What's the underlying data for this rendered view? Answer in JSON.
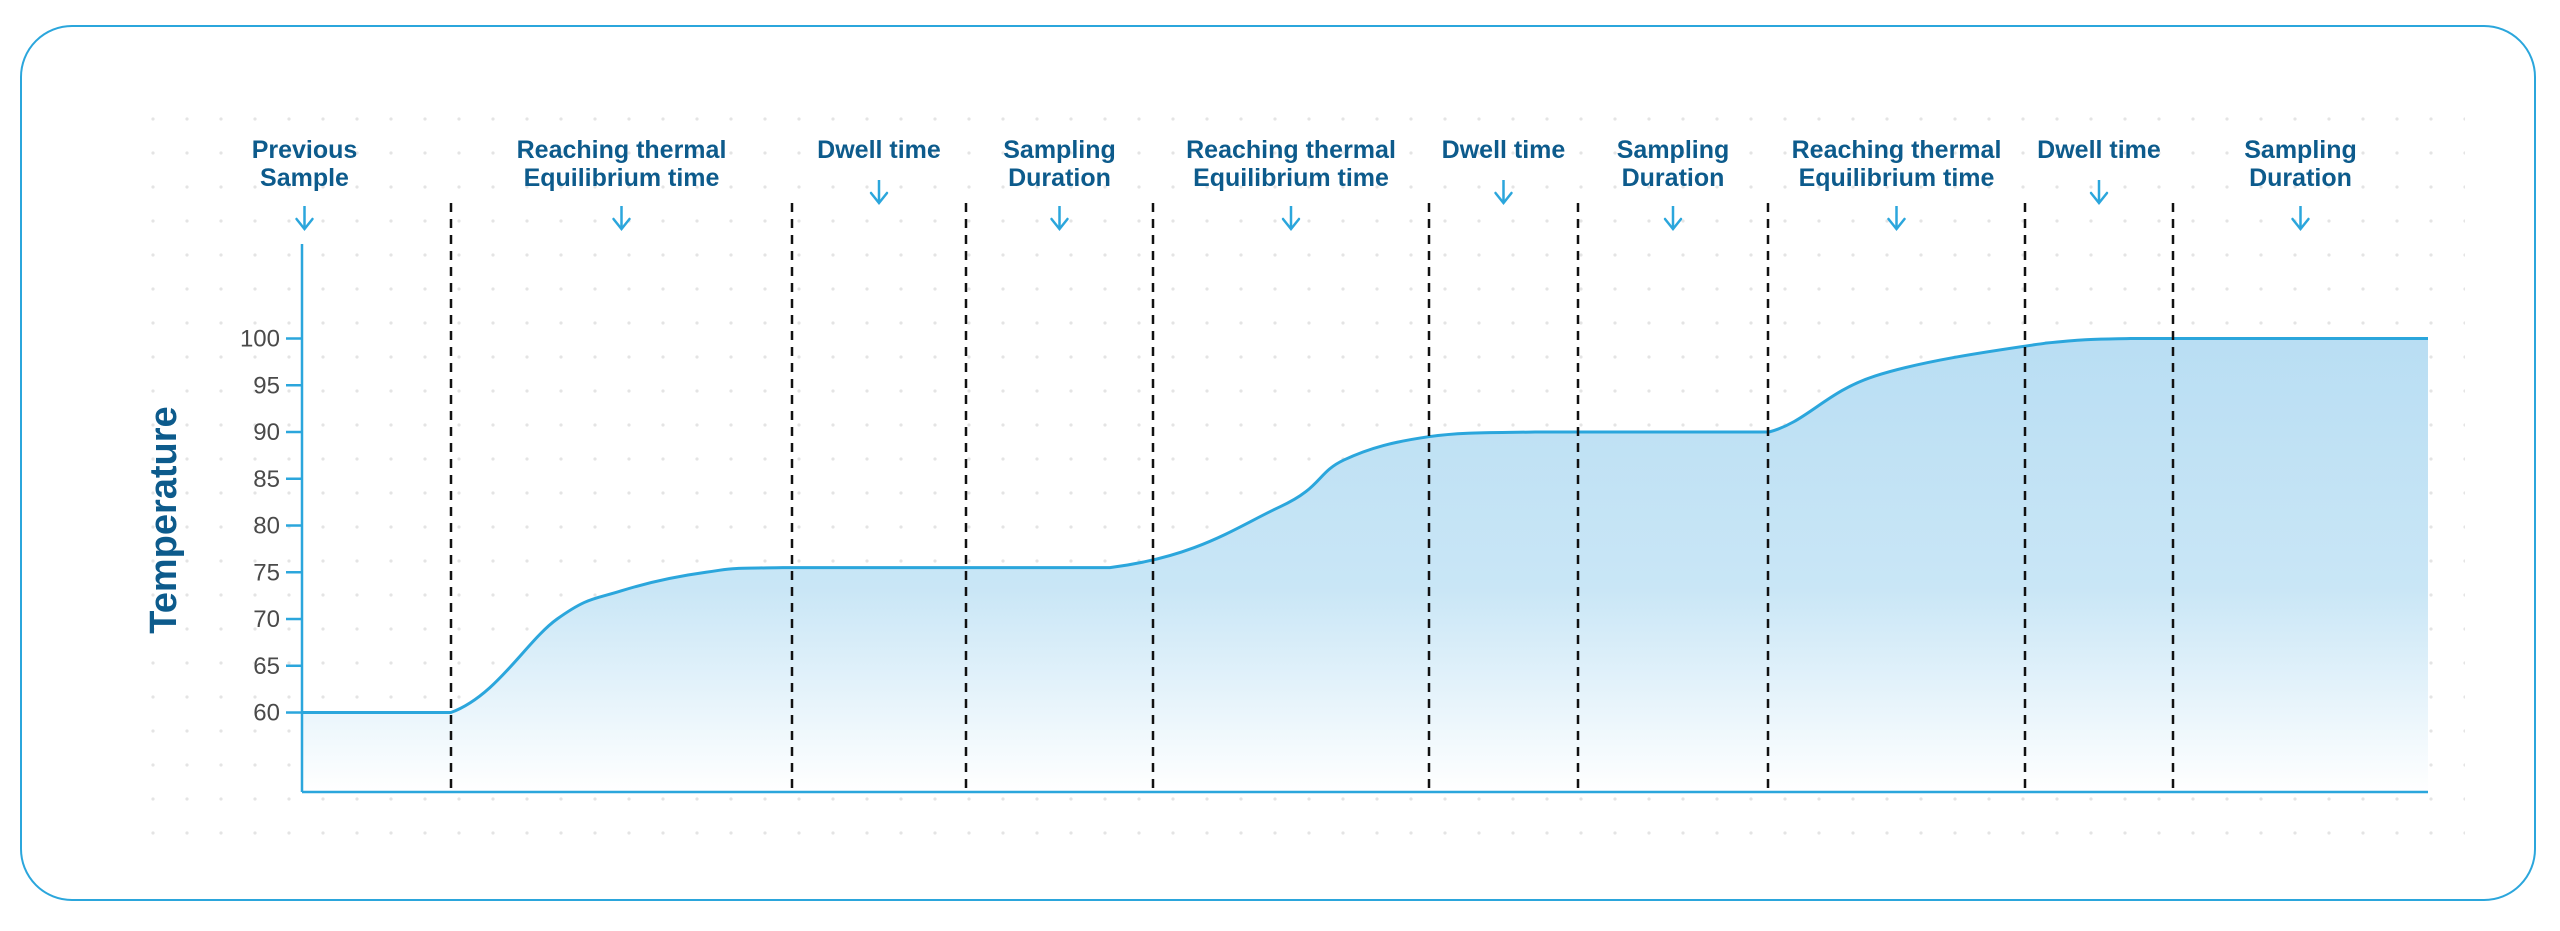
{
  "colors": {
    "accent": "#2ba6dc",
    "label": "#0d5b8c",
    "tick": "#4a4a4a",
    "divider": "#111111",
    "fill_top": "#b9def3",
    "fill_bottom": "#ffffff",
    "grid_dot": "#e4e4e4"
  },
  "chart_data": {
    "type": "area",
    "title": "",
    "xlabel": "",
    "ylabel": "Temperature",
    "ylim": [
      51.5,
      110
    ],
    "yticks": [
      60,
      65,
      70,
      75,
      80,
      85,
      90,
      95,
      100
    ],
    "grid": "dotted background",
    "phases": [
      {
        "name": "Previous Sample",
        "lines": [
          "Previous",
          "Sample"
        ]
      },
      {
        "name": "Reaching thermal Equilibrium time",
        "lines": [
          "Reaching thermal",
          "Equilibrium time"
        ]
      },
      {
        "name": "Dwell time",
        "lines": [
          "Dwell time"
        ]
      },
      {
        "name": "Sampling Duration",
        "lines": [
          "Sampling",
          "Duration"
        ]
      },
      {
        "name": "Reaching thermal Equilibrium time",
        "lines": [
          "Reaching thermal",
          "Equilibrium time"
        ]
      },
      {
        "name": "Dwell time",
        "lines": [
          "Dwell time"
        ]
      },
      {
        "name": "Sampling Duration",
        "lines": [
          "Sampling",
          "Duration"
        ]
      },
      {
        "name": "Reaching thermal Equilibrium time",
        "lines": [
          "Reaching thermal",
          "Equilibrium time"
        ]
      },
      {
        "name": "Dwell time",
        "lines": [
          "Dwell time"
        ]
      },
      {
        "name": "Sampling Duration",
        "lines": [
          "Sampling",
          "Duration"
        ]
      }
    ],
    "series": [
      {
        "x": [
          0.0,
          0.07,
          0.12,
          0.15,
          0.19,
          0.23,
          0.38,
          0.46,
          0.49,
          0.53,
          0.58,
          0.64,
          0.69,
          0.74,
          0.82,
          0.86,
          0.91,
          1.0
        ],
        "values": [
          60,
          60,
          70,
          73,
          75,
          75.5,
          75.5,
          82,
          87,
          89.5,
          90,
          90,
          90,
          96,
          99.5,
          100,
          100,
          100
        ]
      }
    ]
  }
}
